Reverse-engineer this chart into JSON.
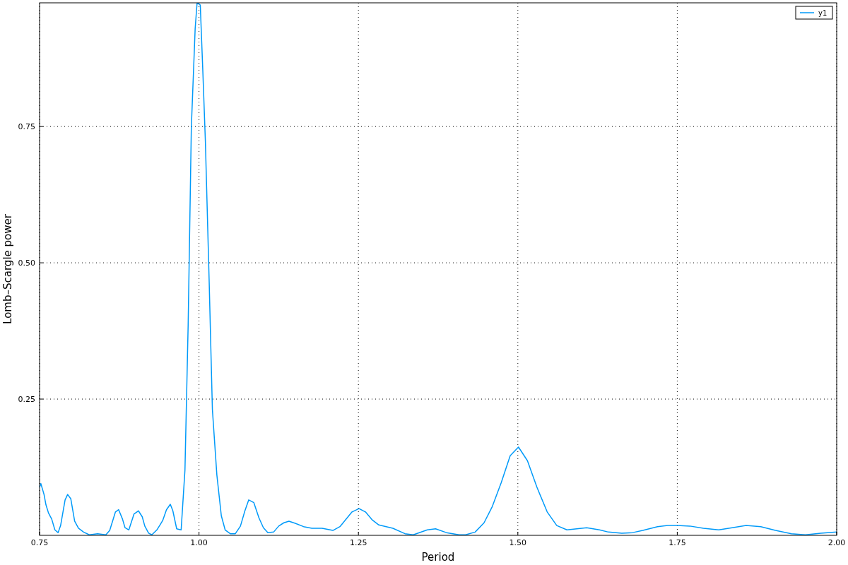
{
  "chart_data": {
    "type": "line",
    "xlabel": "Period",
    "ylabel": "Lomb–Scargle power",
    "xlim": [
      0.75,
      2.0
    ],
    "ylim": [
      0,
      0.977
    ],
    "xticks": [
      {
        "value": 0.75,
        "label": "0.75"
      },
      {
        "value": 1,
        "label": "1.00"
      },
      {
        "value": 1.25,
        "label": "1.25"
      },
      {
        "value": 1.5,
        "label": "1.50"
      },
      {
        "value": 1.75,
        "label": "1.75"
      },
      {
        "value": 2,
        "label": "2.00"
      }
    ],
    "yticks": [
      {
        "value": 0.25,
        "label": "0.25"
      },
      {
        "value": 0.5,
        "label": "0.50"
      },
      {
        "value": 0.75,
        "label": "0.75"
      }
    ],
    "grid": true,
    "legend": "top right",
    "marker": "none",
    "line_style": "solid",
    "x": [
      0.75,
      0.752,
      0.757,
      0.76,
      0.764,
      0.769,
      0.774,
      0.779,
      0.783,
      0.79,
      0.794,
      0.799,
      0.805,
      0.811,
      0.819,
      0.828,
      0.841,
      0.854,
      0.86,
      0.869,
      0.874,
      0.88,
      0.884,
      0.89,
      0.898,
      0.905,
      0.911,
      0.915,
      0.921,
      0.926,
      0.934,
      0.943,
      0.949,
      0.955,
      0.959,
      0.965,
      0.972,
      0.978,
      0.983,
      0.988,
      0.994,
      0.997,
      1.002,
      1.006,
      1.01,
      1.016,
      1.021,
      1.028,
      1.035,
      1.041,
      1.049,
      1.057,
      1.065,
      1.072,
      1.078,
      1.086,
      1.094,
      1.101,
      1.108,
      1.117,
      1.125,
      1.133,
      1.141,
      1.151,
      1.164,
      1.177,
      1.193,
      1.21,
      1.221,
      1.24,
      1.251,
      1.261,
      1.272,
      1.282,
      1.304,
      1.323,
      1.336,
      1.358,
      1.371,
      1.388,
      1.408,
      1.418,
      1.433,
      1.447,
      1.46,
      1.474,
      1.488,
      1.501,
      1.515,
      1.53,
      1.546,
      1.561,
      1.577,
      1.608,
      1.628,
      1.642,
      1.663,
      1.68,
      1.696,
      1.719,
      1.735,
      1.75,
      1.77,
      1.791,
      1.815,
      1.836,
      1.858,
      1.881,
      1.904,
      1.929,
      1.951,
      1.975,
      2.0
    ],
    "series": [
      {
        "name": "y1",
        "color": "#009af9",
        "values": [
          0.088,
          0.095,
          0.075,
          0.056,
          0.041,
          0.03,
          0.01,
          0.005,
          0.018,
          0.065,
          0.075,
          0.067,
          0.026,
          0.013,
          0.006,
          0.001,
          0.003,
          0.001,
          0.009,
          0.043,
          0.047,
          0.03,
          0.014,
          0.01,
          0.039,
          0.045,
          0.034,
          0.017,
          0.004,
          0.001,
          0.01,
          0.027,
          0.047,
          0.057,
          0.045,
          0.012,
          0.01,
          0.12,
          0.386,
          0.749,
          0.93,
          0.977,
          0.973,
          0.852,
          0.723,
          0.464,
          0.231,
          0.111,
          0.036,
          0.01,
          0.003,
          0.003,
          0.017,
          0.045,
          0.065,
          0.06,
          0.032,
          0.014,
          0.005,
          0.006,
          0.017,
          0.023,
          0.026,
          0.022,
          0.016,
          0.013,
          0.013,
          0.009,
          0.016,
          0.043,
          0.049,
          0.043,
          0.028,
          0.019,
          0.013,
          0.003,
          0.001,
          0.01,
          0.012,
          0.005,
          0.001,
          0.001,
          0.006,
          0.023,
          0.053,
          0.097,
          0.146,
          0.162,
          0.137,
          0.088,
          0.043,
          0.018,
          0.01,
          0.014,
          0.01,
          0.006,
          0.004,
          0.005,
          0.009,
          0.016,
          0.018,
          0.018,
          0.017,
          0.013,
          0.01,
          0.014,
          0.018,
          0.016,
          0.009,
          0.003,
          0.001,
          0.004,
          0.006
        ]
      }
    ]
  }
}
